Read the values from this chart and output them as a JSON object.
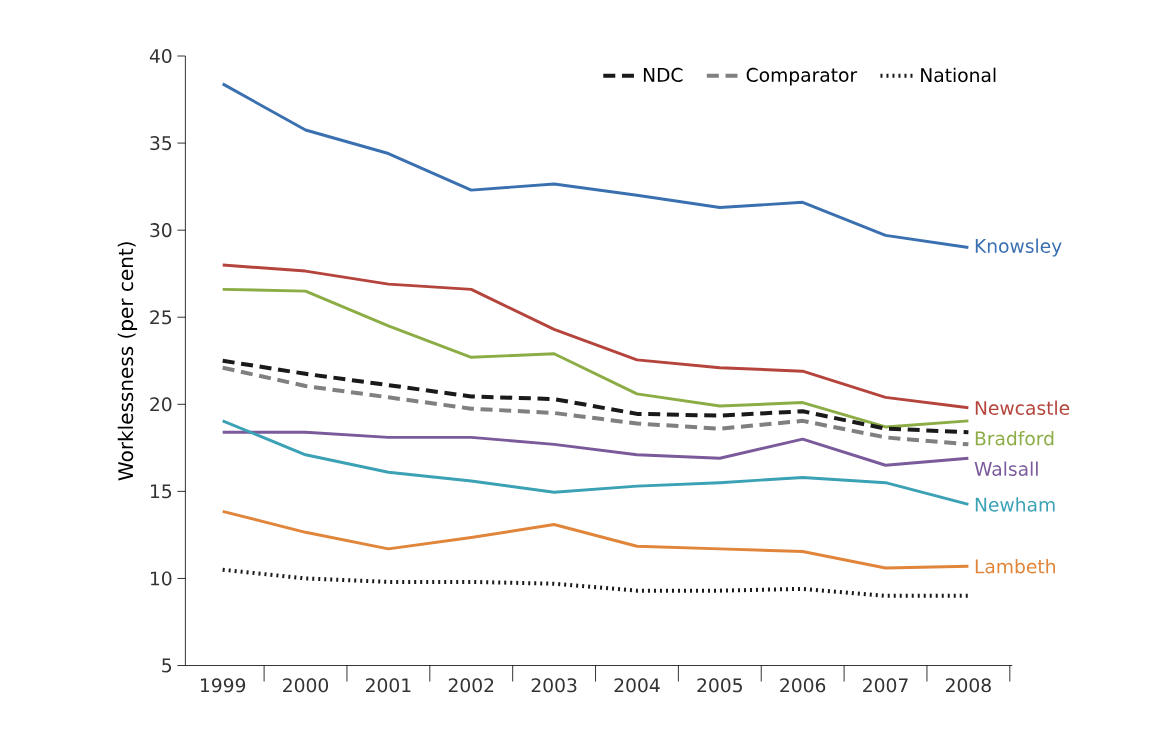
{
  "chart_data": {
    "type": "line",
    "ylabel": "Worklessness (per cent)",
    "categories": [
      "1999",
      "2000",
      "2001",
      "2002",
      "2003",
      "2004",
      "2005",
      "2006",
      "2007",
      "2008"
    ],
    "ylim": [
      5,
      40
    ],
    "yticks": [
      5,
      10,
      15,
      20,
      25,
      30,
      35,
      40
    ],
    "grid": false,
    "legend": "top right",
    "marker": "none",
    "series": [
      {
        "name": "Knowsley",
        "color": "#3a70b0",
        "line_style": "solid",
        "values": [
          38.4,
          35.75,
          34.4,
          32.3,
          32.65,
          32.0,
          31.3,
          31.6,
          29.7,
          29.0
        ]
      },
      {
        "name": "Newcastle",
        "color": "#b5443d",
        "line_style": "solid",
        "values": [
          28.0,
          27.65,
          26.9,
          26.6,
          24.3,
          22.55,
          22.1,
          21.9,
          20.4,
          19.8
        ]
      },
      {
        "name": "Bradford",
        "color": "#8cad45",
        "line_style": "solid",
        "values": [
          26.6,
          26.5,
          24.5,
          22.7,
          22.9,
          20.6,
          19.9,
          20.1,
          18.7,
          19.05
        ]
      },
      {
        "name": "NDC",
        "color": "#1a1a1a",
        "line_style": "dashed",
        "values": [
          22.5,
          21.75,
          21.1,
          20.45,
          20.3,
          19.45,
          19.35,
          19.6,
          18.6,
          18.4
        ]
      },
      {
        "name": "Comparator",
        "color": "#808080",
        "line_style": "dashed",
        "values": [
          22.1,
          21.05,
          20.4,
          19.75,
          19.5,
          18.9,
          18.6,
          19.05,
          18.1,
          17.7
        ]
      },
      {
        "name": "Walsall",
        "color": "#7a5a9a",
        "line_style": "solid",
        "values": [
          18.4,
          18.4,
          18.1,
          18.1,
          17.7,
          17.1,
          16.9,
          18.0,
          16.5,
          16.9
        ]
      },
      {
        "name": "Newham",
        "color": "#3ba1b5",
        "line_style": "solid",
        "values": [
          19.05,
          17.1,
          16.1,
          15.6,
          14.95,
          15.3,
          15.5,
          15.8,
          15.5,
          14.25
        ]
      },
      {
        "name": "Lambeth",
        "color": "#e0853a",
        "line_style": "solid",
        "values": [
          13.85,
          12.65,
          11.7,
          12.35,
          13.1,
          11.85,
          11.7,
          11.55,
          10.6,
          10.7
        ]
      },
      {
        "name": "National",
        "color": "#1a1a1a",
        "line_style": "dotted",
        "values": [
          10.5,
          10.0,
          9.8,
          9.8,
          9.7,
          9.3,
          9.3,
          9.4,
          9.0,
          9.0
        ]
      }
    ]
  }
}
